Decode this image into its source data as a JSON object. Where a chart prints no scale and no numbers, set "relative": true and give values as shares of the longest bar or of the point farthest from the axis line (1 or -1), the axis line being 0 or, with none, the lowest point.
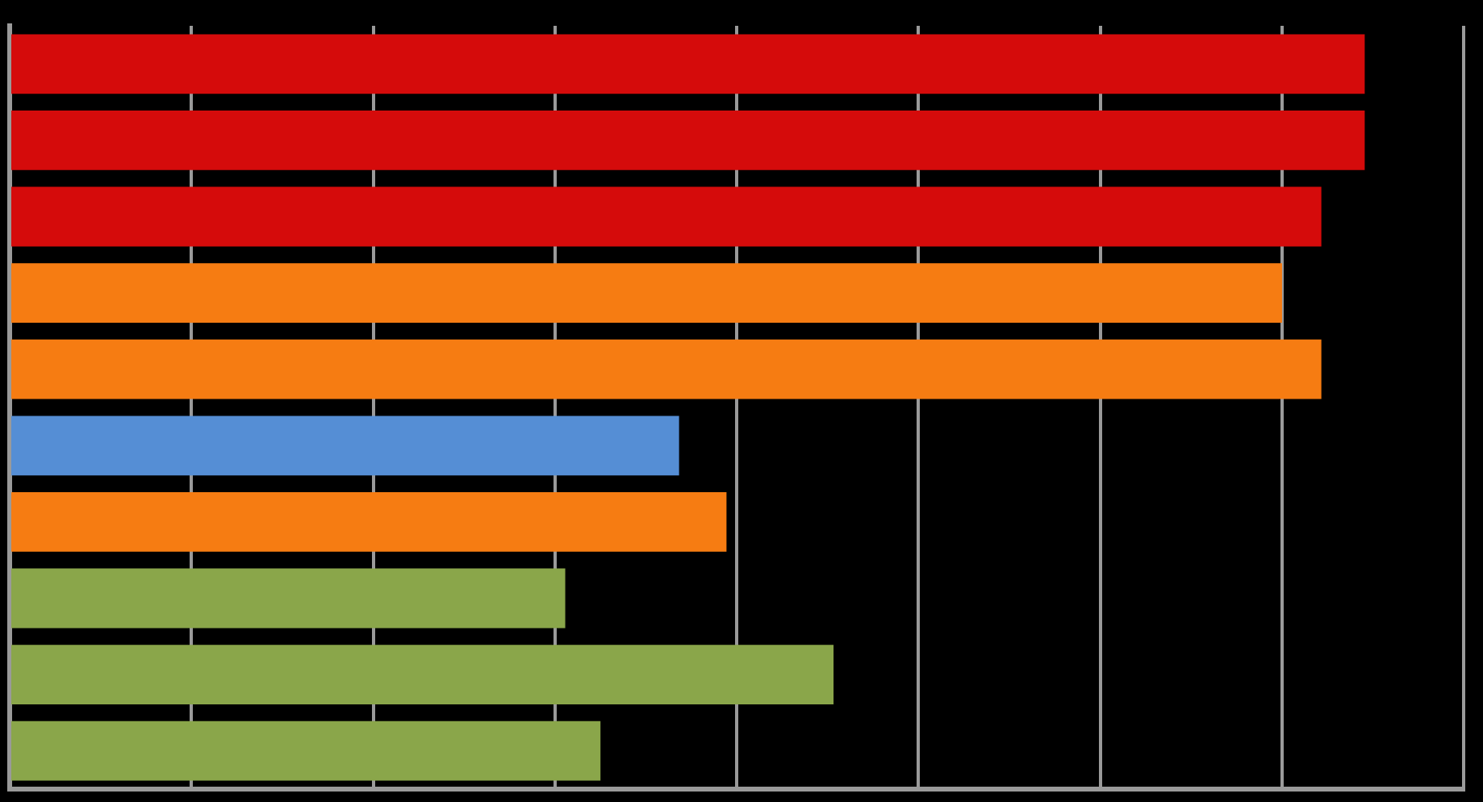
{
  "chart_data": {
    "type": "bar",
    "orientation": "horizontal",
    "relative": true,
    "grid": "x",
    "categories": [
      null,
      null,
      null,
      null,
      null,
      null,
      null,
      null,
      null,
      null
    ],
    "values": [
      1,
      1,
      0.968,
      0.939,
      0.968,
      0.494,
      0.529,
      0.41,
      0.608,
      0.436
    ],
    "colors": [
      "#d50b0b",
      "#d50b0b",
      "#d50b0b",
      "#f67c12",
      "#f67c12",
      "#558ed5",
      "#f67c12",
      "#8aa64a",
      "#8aa64a",
      "#8aa64a"
    ]
  }
}
